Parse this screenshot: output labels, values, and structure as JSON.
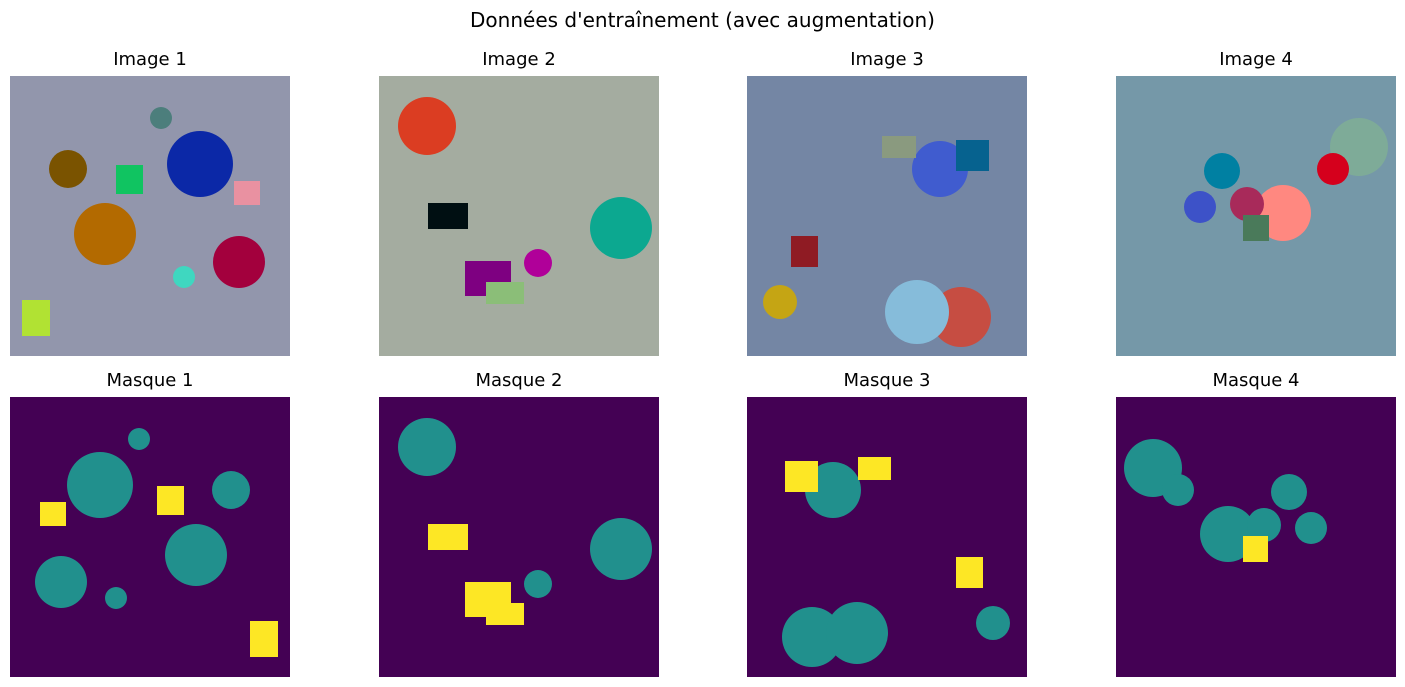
{
  "figure": {
    "title": "Données d'entraînement (avec augmentation)"
  },
  "colors": {
    "mask_background": "#440154",
    "mask_circle": "#21908d",
    "mask_rectangle": "#fde725"
  },
  "images": [
    {
      "title": "Image 1",
      "background": "#9296ac",
      "shapes": [
        {
          "type": "circle",
          "color": "#0b28a7"
        },
        {
          "type": "circle",
          "color": "#b36a00"
        },
        {
          "type": "circle",
          "color": "#a3003d"
        },
        {
          "type": "circle",
          "color": "#7a5300"
        },
        {
          "type": "circle",
          "color": "#4c7e7c"
        },
        {
          "type": "circle",
          "color": "#3fd7c0"
        },
        {
          "type": "rect",
          "color": "#10c461"
        },
        {
          "type": "rect",
          "color": "#e991a1"
        },
        {
          "type": "rect",
          "color": "#b1e233"
        }
      ]
    },
    {
      "title": "Image 2",
      "background": "#a4aca0",
      "shapes": [
        {
          "type": "circle",
          "color": "#db3d22"
        },
        {
          "type": "circle",
          "color": "#0ca890"
        },
        {
          "type": "circle",
          "color": "#b00099"
        },
        {
          "type": "rect",
          "color": "#000f12"
        },
        {
          "type": "rect",
          "color": "#7e0081"
        },
        {
          "type": "rect",
          "color": "#8bbe78"
        }
      ]
    },
    {
      "title": "Image 3",
      "background": "#7486a4",
      "shapes": [
        {
          "type": "circle",
          "color": "#c64d42"
        },
        {
          "type": "circle",
          "color": "#86bcda"
        },
        {
          "type": "circle",
          "color": "#405ccf"
        },
        {
          "type": "circle",
          "color": "#c5a514"
        },
        {
          "type": "rect",
          "color": "#8a9a7f"
        },
        {
          "type": "rect",
          "color": "#06628f"
        },
        {
          "type": "rect",
          "color": "#8f1b23"
        }
      ]
    },
    {
      "title": "Image 4",
      "background": "#7598a8",
      "shapes": [
        {
          "type": "circle",
          "color": "#7eab98"
        },
        {
          "type": "circle",
          "color": "#ff8880"
        },
        {
          "type": "circle",
          "color": "#0080a2"
        },
        {
          "type": "circle",
          "color": "#3d52c8"
        },
        {
          "type": "circle",
          "color": "#a82a5a"
        },
        {
          "type": "circle",
          "color": "#d5001c"
        },
        {
          "type": "rect",
          "color": "#4a7a5a"
        }
      ]
    }
  ],
  "masks": [
    {
      "title": "Masque 1",
      "shapes": [
        "circle",
        "circle",
        "circle",
        "circle",
        "circle",
        "circle",
        "rect",
        "rect",
        "rect"
      ]
    },
    {
      "title": "Masque 2",
      "shapes": [
        "circle",
        "circle",
        "circle",
        "rect",
        "rect",
        "rect"
      ]
    },
    {
      "title": "Masque 3",
      "shapes": [
        "circle",
        "circle",
        "circle",
        "circle",
        "rect",
        "rect",
        "rect"
      ]
    },
    {
      "title": "Masque 4",
      "shapes": [
        "circle",
        "circle",
        "circle",
        "circle",
        "circle",
        "circle",
        "rect"
      ]
    }
  ]
}
